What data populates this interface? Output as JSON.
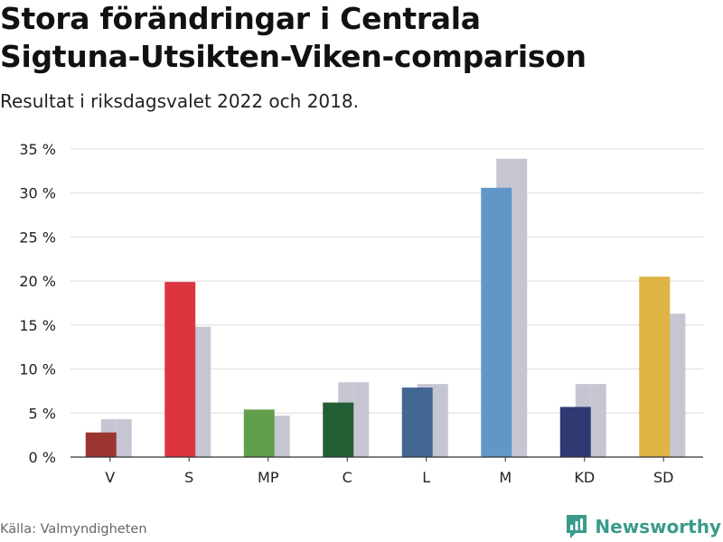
{
  "header": {
    "title_line1": "Stora förändringar i Centrala",
    "title_line2": "Sigtuna-Utsikten-Viken-comparison",
    "subtitle": "Resultat i riksdagsvalet 2022 och 2018."
  },
  "footer": {
    "source": "Källa: Valmyndigheten",
    "brand": "Newsworthy",
    "brand_color": "#3a9b8c"
  },
  "chart_data": {
    "type": "bar",
    "categories": [
      "V",
      "S",
      "MP",
      "C",
      "L",
      "M",
      "KD",
      "SD"
    ],
    "series": [
      {
        "values": [
          2.8,
          19.9,
          5.4,
          6.2,
          7.9,
          30.6,
          5.7,
          20.5
        ],
        "colors": [
          "#9b3530",
          "#dc3540",
          "#629f4c",
          "#235f34",
          "#436793",
          "#6097c8",
          "#2f3a72",
          "#dfb444"
        ]
      },
      {
        "values": [
          4.3,
          14.8,
          4.7,
          8.5,
          8.3,
          33.9,
          8.3,
          16.3
        ],
        "color": "#c6c5d2"
      }
    ],
    "ylim": [
      0,
      35
    ],
    "yticks": [
      0,
      5,
      10,
      15,
      20,
      25,
      30,
      35
    ],
    "ytick_labels": [
      "0 %",
      "5 %",
      "10 %",
      "15 %",
      "20 %",
      "25 %",
      "30 %",
      "35 %"
    ],
    "grid": true,
    "legend": "none"
  }
}
